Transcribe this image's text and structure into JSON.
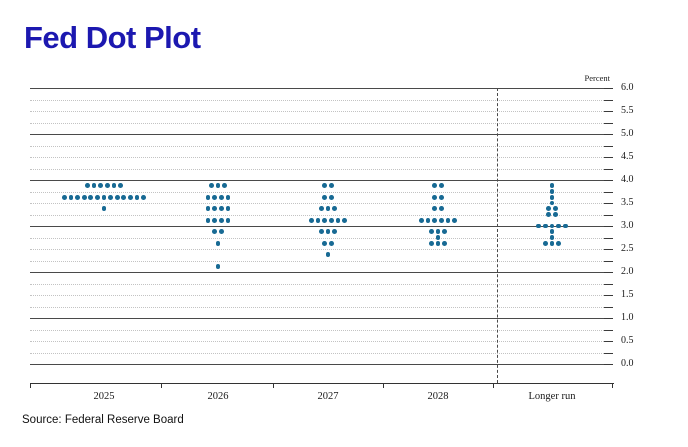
{
  "page": {
    "title": "Fed Dot Plot",
    "source_note": "Source: Federal Reserve Board"
  },
  "chart_data": {
    "type": "scatter",
    "subtype": "fomc-dot-plot",
    "title": "Fed Dot Plot",
    "unit_label": "Percent",
    "ylim": [
      0.0,
      6.0
    ],
    "y_major_step": 0.5,
    "y_minor_step": 0.25,
    "y_tick_labels": [
      "6.0",
      "5.5",
      "5.0",
      "4.5",
      "4.0",
      "3.5",
      "3.0",
      "2.5",
      "2.0",
      "1.5",
      "1.0",
      "0.5",
      "0.0"
    ],
    "grid": "solid gray lines at whole percents, dotted light lines at quarter percents",
    "legend_position": "none",
    "categories": [
      "2025",
      "2026",
      "2027",
      "2028",
      "Longer run"
    ],
    "separator_before_category": "Longer run",
    "series": [
      {
        "category": "2025",
        "dots": [
          {
            "rate": 3.875,
            "count": 6
          },
          {
            "rate": 3.625,
            "count": 13
          },
          {
            "rate": 3.375,
            "count": 1
          }
        ]
      },
      {
        "category": "2026",
        "dots": [
          {
            "rate": 3.875,
            "count": 3
          },
          {
            "rate": 3.625,
            "count": 4
          },
          {
            "rate": 3.375,
            "count": 4
          },
          {
            "rate": 3.125,
            "count": 4
          },
          {
            "rate": 2.875,
            "count": 2
          },
          {
            "rate": 2.625,
            "count": 1
          },
          {
            "rate": 2.125,
            "count": 1
          }
        ]
      },
      {
        "category": "2027",
        "dots": [
          {
            "rate": 3.875,
            "count": 2
          },
          {
            "rate": 3.625,
            "count": 2
          },
          {
            "rate": 3.375,
            "count": 3
          },
          {
            "rate": 3.125,
            "count": 6
          },
          {
            "rate": 2.875,
            "count": 3
          },
          {
            "rate": 2.625,
            "count": 2
          },
          {
            "rate": 2.375,
            "count": 1
          }
        ]
      },
      {
        "category": "2028",
        "dots": [
          {
            "rate": 3.875,
            "count": 2
          },
          {
            "rate": 3.625,
            "count": 2
          },
          {
            "rate": 3.375,
            "count": 2
          },
          {
            "rate": 3.125,
            "count": 6
          },
          {
            "rate": 2.875,
            "count": 3
          },
          {
            "rate": 2.75,
            "count": 1
          },
          {
            "rate": 2.625,
            "count": 3
          }
        ]
      },
      {
        "category": "Longer run",
        "dots": [
          {
            "rate": 3.875,
            "count": 1
          },
          {
            "rate": 3.75,
            "count": 1
          },
          {
            "rate": 3.625,
            "count": 1
          },
          {
            "rate": 3.5,
            "count": 1
          },
          {
            "rate": 3.375,
            "count": 2
          },
          {
            "rate": 3.25,
            "count": 2
          },
          {
            "rate": 3.0,
            "count": 5
          },
          {
            "rate": 2.875,
            "count": 1
          },
          {
            "rate": 2.75,
            "count": 1
          },
          {
            "rate": 2.625,
            "count": 3
          }
        ]
      }
    ],
    "colors": {
      "dot": "#186a94",
      "title_blue": "#1c18b0"
    }
  }
}
